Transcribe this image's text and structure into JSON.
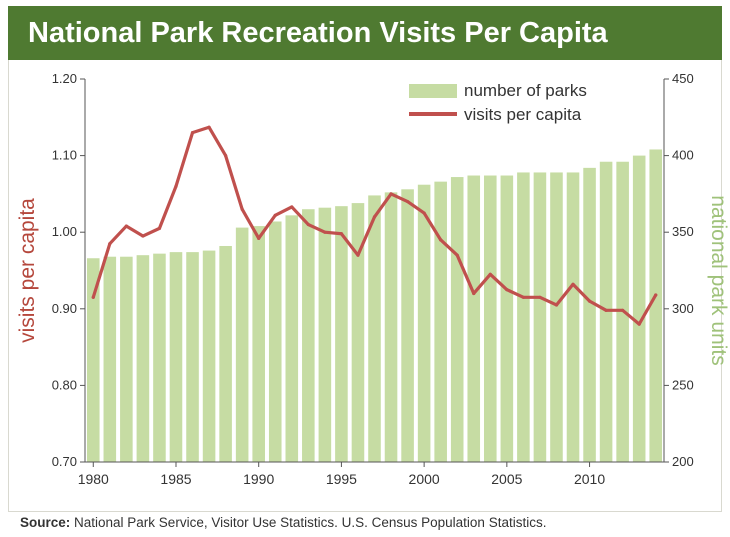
{
  "title": "National Park Recreation Visits Per Capita",
  "source_label": "Source:",
  "source_text": " National Park Service, Visitor Use Statistics. U.S. Census Population Statistics.",
  "colors": {
    "title_bg": "#4f7a31",
    "bars": "#c6dca3",
    "line": "#c0504d",
    "left_axis_label": "#b5473c",
    "right_axis_label": "#9fc27a"
  },
  "chart_data": {
    "type": "bar",
    "title": "National Park Recreation Visits Per Capita",
    "x": [
      1980,
      1981,
      1982,
      1983,
      1984,
      1985,
      1986,
      1987,
      1988,
      1989,
      1990,
      1991,
      1992,
      1993,
      1994,
      1995,
      1996,
      1997,
      1998,
      1999,
      2000,
      2001,
      2002,
      2003,
      2004,
      2005,
      2006,
      2007,
      2008,
      2009,
      2010,
      2011,
      2012,
      2013,
      2014
    ],
    "x_ticks": [
      "1980",
      "1985",
      "1990",
      "1995",
      "2000",
      "2005",
      "2010"
    ],
    "ylabel": "visits per capita",
    "y2label": "national park units",
    "ylim": [
      0.7,
      1.2
    ],
    "y_ticks": [
      "0.70",
      "0.80",
      "0.90",
      "1.00",
      "1.10",
      "1.20"
    ],
    "y2lim": [
      200,
      450
    ],
    "y2_ticks": [
      "200",
      "250",
      "300",
      "350",
      "400",
      "450"
    ],
    "legend_position": "top-right",
    "series": [
      {
        "name": "number of parks",
        "type": "bar",
        "axis": "right",
        "values": [
          333,
          334,
          334,
          335,
          336,
          337,
          337,
          338,
          341,
          353,
          354,
          357,
          361,
          365,
          366,
          367,
          369,
          374,
          376,
          378,
          381,
          383,
          386,
          387,
          387,
          387,
          389,
          389,
          389,
          389,
          392,
          396,
          396,
          400,
          404
        ]
      },
      {
        "name": "visits per capita",
        "type": "line",
        "axis": "left",
        "values": [
          0.915,
          0.985,
          1.008,
          0.995,
          1.005,
          1.06,
          1.13,
          1.137,
          1.1,
          1.03,
          0.992,
          1.022,
          1.033,
          1.01,
          1.0,
          0.998,
          0.97,
          1.02,
          1.05,
          1.04,
          1.025,
          0.99,
          0.97,
          0.92,
          0.945,
          0.925,
          0.915,
          0.915,
          0.905,
          0.932,
          0.91,
          0.898,
          0.898,
          0.88,
          0.918
        ]
      }
    ]
  }
}
